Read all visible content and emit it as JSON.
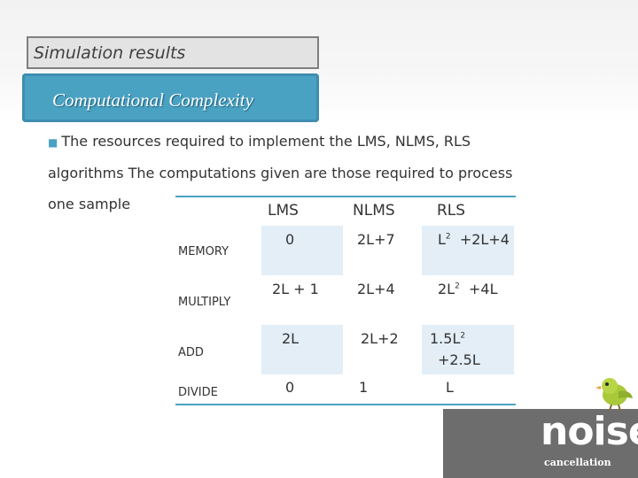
{
  "header": {
    "sim_title": "Simulation results",
    "cc_title": "Computational Complexity"
  },
  "body": {
    "line1": "The resources required to implement the LMS, NLMS, RLS",
    "line2": "algorithms The computations given are those required to process",
    "line3": "one sample"
  },
  "table": {
    "headers": [
      "LMS",
      "NLMS",
      "RLS"
    ],
    "rows": {
      "memory": {
        "label": "MEMORY",
        "lms": "0",
        "nlms": "2L+7",
        "rls_pre": "L",
        "rls_sup": "2",
        "rls_post": "+2L+4"
      },
      "multiply": {
        "label": "MULTIPLY",
        "lms": "2L + 1",
        "nlms": "2L+4",
        "rls_pre": "2L",
        "rls_sup": "2",
        "rls_post": "+4L"
      },
      "add": {
        "label": "ADD",
        "lms": "2L",
        "nlms": "2L+2",
        "rls_pre": "1.5L",
        "rls_sup": "2",
        "rls_post": "+2.5L"
      },
      "divide": {
        "label": "DIVIDE",
        "lms": "0",
        "nlms": "1",
        "rls": "L"
      }
    }
  },
  "logo": {
    "word": "noise",
    "sub": "cancellation",
    "bird_icon": "bird-icon"
  },
  "colors": {
    "accent": "#4aa2c3",
    "shade": "#e3eef7"
  }
}
